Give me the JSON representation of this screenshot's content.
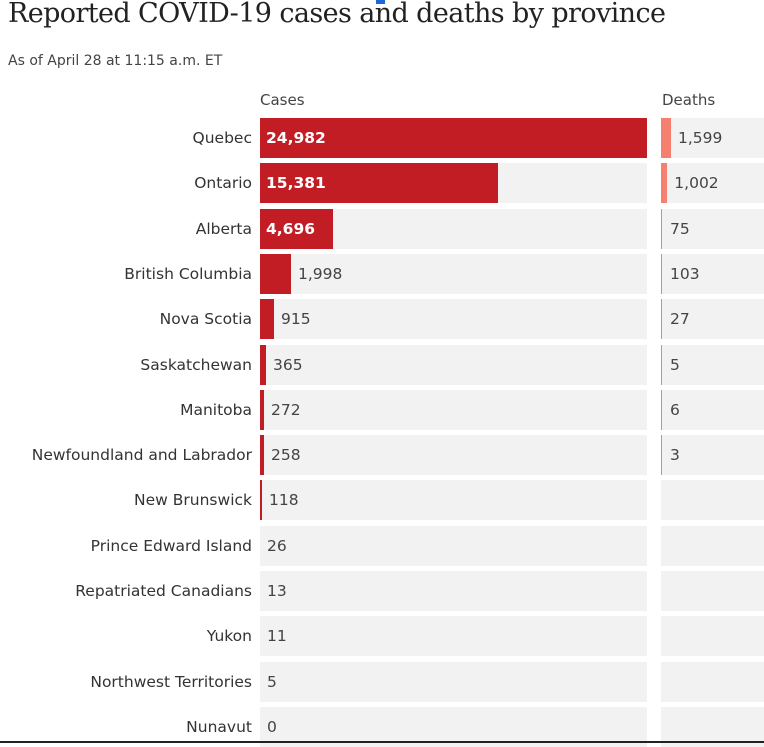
{
  "title": "Reported COVID-19 cases and deaths by province",
  "subtitle": "As of April 28 at 11:15 a.m. ET",
  "colors": {
    "cases_bar": "#c21d25",
    "deaths_bar": "#f58070",
    "track": "#f2f2f2"
  },
  "chart_data": {
    "type": "bar",
    "orientation": "horizontal",
    "title": "Reported COVID-19 cases and deaths by province",
    "subtitle": "As of April 28 at 11:15 a.m. ET",
    "categories": [
      "Quebec",
      "Ontario",
      "Alberta",
      "British Columbia",
      "Nova Scotia",
      "Saskatchewan",
      "Manitoba",
      "Newfoundland and Labrador",
      "New Brunswick",
      "Prince Edward Island",
      "Repatriated Canadians",
      "Yukon",
      "Northwest Territories",
      "Nunavut"
    ],
    "series": [
      {
        "name": "Cases",
        "values": [
          24982,
          15381,
          4696,
          1998,
          915,
          365,
          272,
          258,
          118,
          26,
          13,
          11,
          5,
          0
        ],
        "labels": [
          "24,982",
          "15,381",
          "4,696",
          "1,998",
          "915",
          "365",
          "272",
          "258",
          "118",
          "26",
          "13",
          "11",
          "5",
          "0"
        ],
        "max": 24982
      },
      {
        "name": "Deaths",
        "values": [
          1599,
          1002,
          75,
          103,
          27,
          5,
          6,
          3,
          null,
          null,
          null,
          null,
          null,
          null
        ],
        "labels": [
          "1,599",
          "1,002",
          "75",
          "103",
          "27",
          "5",
          "6",
          "3",
          "",
          "",
          "",
          "",
          "",
          ""
        ],
        "max": 16500
      }
    ],
    "grid": false,
    "legend": "none"
  }
}
